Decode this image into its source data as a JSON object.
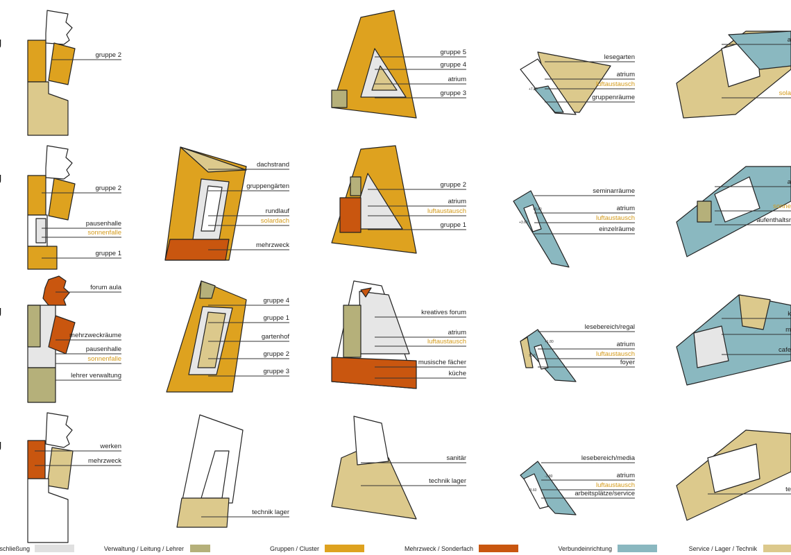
{
  "row_labels": [
    "g",
    "g",
    "g",
    "g"
  ],
  "fills": {
    "grey": "#e6e6e6",
    "olive": "#b5b07a",
    "orange": "#dea21f",
    "red": "#c9560f",
    "blue": "#8ab8c0",
    "beige": "#dcc98c",
    "white": "#ffffff"
  },
  "panels": [
    {
      "labels": [
        {
          "text": "gruppe 2"
        }
      ]
    },
    {
      "labels": [
        {
          "text": "gruppe 2"
        },
        {
          "text": "pausenhalle"
        },
        {
          "text": "sonnenfalle",
          "accent": true
        },
        {
          "text": "gruppe 1"
        }
      ]
    },
    {
      "labels": [
        {
          "text": "forum aula"
        },
        {
          "text": "mehrzweckräume"
        },
        {
          "text": "pausenhalle"
        },
        {
          "text": "sonnenfalle",
          "accent": true
        },
        {
          "text": "lehrer verwaltung"
        }
      ]
    },
    {
      "labels": [
        {
          "text": "werken"
        },
        {
          "text": "mehrzweck"
        }
      ]
    },
    {
      "labels": [
        {
          "text": "dachstrand"
        },
        {
          "text": "gruppengärten"
        },
        {
          "text": "rundlauf"
        },
        {
          "text": "solardach",
          "accent": true
        },
        {
          "text": "mehrzweck"
        }
      ]
    },
    {
      "labels": [
        {
          "text": "gruppe 4"
        },
        {
          "text": "gruppe 1"
        },
        {
          "text": "gartenhof"
        },
        {
          "text": "gruppe 2"
        },
        {
          "text": "gruppe 3"
        }
      ]
    },
    {
      "labels": [
        {
          "text": "technik lager"
        }
      ]
    },
    {
      "labels": [
        {
          "text": "gruppe 5"
        },
        {
          "text": "gruppe 4"
        },
        {
          "text": "atrium"
        },
        {
          "text": "gruppe 3"
        }
      ]
    },
    {
      "labels": [
        {
          "text": "gruppe 2"
        },
        {
          "text": "atrium"
        },
        {
          "text": "luftaustausch",
          "accent": true
        },
        {
          "text": "gruppe 1"
        }
      ]
    },
    {
      "labels": [
        {
          "text": "kreatives forum"
        },
        {
          "text": "atrium"
        },
        {
          "text": "luftaustausch",
          "accent": true
        },
        {
          "text": "musische fächer"
        },
        {
          "text": "küche"
        }
      ]
    },
    {
      "labels": [
        {
          "text": "sanitär"
        },
        {
          "text": "technik lager"
        }
      ]
    },
    {
      "labels": [
        {
          "text": "lesegarten"
        },
        {
          "text": "atrium"
        },
        {
          "text": "luftaustausch",
          "accent": true
        },
        {
          "text": "gruppenräume"
        }
      ],
      "levels": [
        "+7.20"
      ]
    },
    {
      "labels": [
        {
          "text": "seminarräume"
        },
        {
          "text": "atrium"
        },
        {
          "text": "luftaustausch",
          "accent": true
        },
        {
          "text": "einzelräume"
        }
      ],
      "levels": [
        "+5.40",
        "+3.60"
      ]
    },
    {
      "labels": [
        {
          "text": "lesebereich/regal"
        },
        {
          "text": "atrium"
        },
        {
          "text": "luftaustausch",
          "accent": true
        },
        {
          "text": "foyer"
        }
      ],
      "levels": [
        "+1.80",
        "±0.0"
      ]
    },
    {
      "labels": [
        {
          "text": "lesebereich/media"
        },
        {
          "text": "atrium"
        },
        {
          "text": "luftaustausch",
          "accent": true
        },
        {
          "text": "arbeitsplätze/service"
        }
      ],
      "levels": [
        "-1.80",
        "-3.60"
      ]
    },
    {
      "labels": [
        {
          "text": "a"
        },
        {
          "text": "sola",
          "accent": true
        }
      ]
    },
    {
      "labels": [
        {
          "text": "a"
        },
        {
          "text": "sonne",
          "accent": true
        },
        {
          "text": "aufenthaltsr"
        }
      ]
    },
    {
      "labels": [
        {
          "text": "k"
        },
        {
          "text": "m"
        },
        {
          "text": "cafe"
        }
      ]
    },
    {
      "labels": [
        {
          "text": "te"
        }
      ]
    }
  ],
  "legend": [
    {
      "text": "rschließung",
      "color": "#e0e0e0"
    },
    {
      "text": "Verwaltung / Leitung / Lehrer",
      "color": "#b5b07a"
    },
    {
      "text": "Gruppen / Cluster",
      "color": "#dea21f"
    },
    {
      "text": "Mehrzweck / Sonderfach",
      "color": "#c9560f"
    },
    {
      "text": "Verbundeinrichtung",
      "color": "#8ab8c0"
    },
    {
      "text": "Service / Lager / Technik",
      "color": "#dcc98c"
    }
  ]
}
